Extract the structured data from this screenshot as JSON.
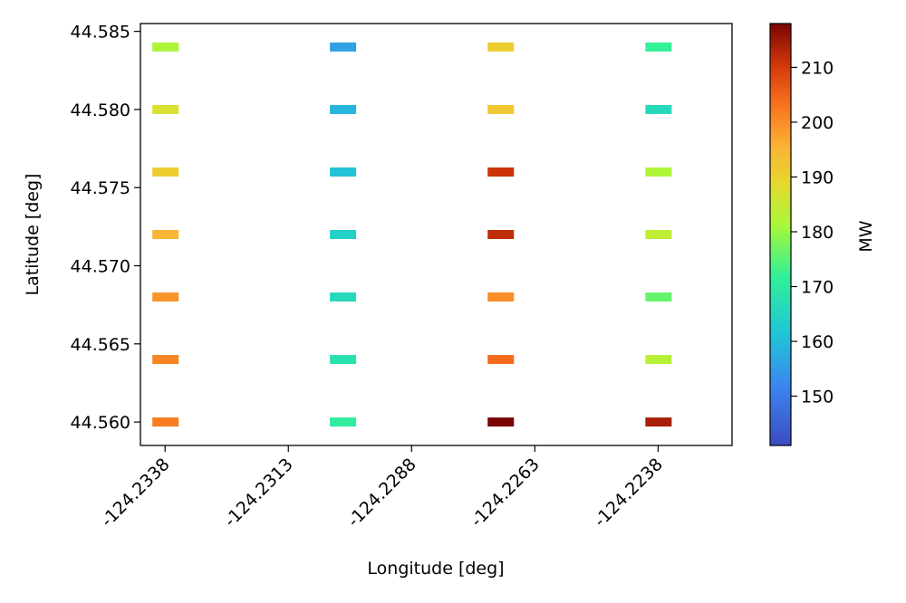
{
  "chart_data": {
    "type": "scatter",
    "title": "",
    "xlabel": "Longitude [deg]",
    "ylabel": "Latitude [deg]",
    "xlim": [
      -124.2343,
      -124.2223
    ],
    "ylim": [
      44.5585,
      44.5855
    ],
    "xticks": [
      -124.2338,
      -124.2313,
      -124.2288,
      -124.2263,
      -124.2238
    ],
    "xtick_labels": [
      "-124.2338",
      "-124.2313",
      "-124.2288",
      "-124.2263",
      "-124.2238"
    ],
    "yticks": [
      44.56,
      44.565,
      44.57,
      44.575,
      44.58,
      44.585
    ],
    "ytick_labels": [
      "44.560",
      "44.565",
      "44.570",
      "44.575",
      "44.580",
      "44.585"
    ],
    "marker": "horizontal bar",
    "colorbar": {
      "label": "MW",
      "vmin": 141,
      "vmax": 218,
      "ticks": [
        150,
        160,
        170,
        180,
        190,
        200,
        210
      ],
      "tick_labels": [
        "150",
        "160",
        "170",
        "180",
        "190",
        "200",
        "210"
      ],
      "colormap": "turbo"
    },
    "points": [
      {
        "lon": -124.2338,
        "lat": 44.584,
        "mw": 182
      },
      {
        "lon": -124.2338,
        "lat": 44.58,
        "mw": 187
      },
      {
        "lon": -124.2338,
        "lat": 44.576,
        "mw": 191
      },
      {
        "lon": -124.2338,
        "lat": 44.572,
        "mw": 195
      },
      {
        "lon": -124.2338,
        "lat": 44.568,
        "mw": 199
      },
      {
        "lon": -124.2338,
        "lat": 44.564,
        "mw": 201
      },
      {
        "lon": -124.2338,
        "lat": 44.56,
        "mw": 202
      },
      {
        "lon": -124.2302,
        "lat": 44.584,
        "mw": 156
      },
      {
        "lon": -124.2302,
        "lat": 44.58,
        "mw": 159
      },
      {
        "lon": -124.2302,
        "lat": 44.576,
        "mw": 161
      },
      {
        "lon": -124.2302,
        "lat": 44.572,
        "mw": 164
      },
      {
        "lon": -124.2302,
        "lat": 44.568,
        "mw": 166
      },
      {
        "lon": -124.2302,
        "lat": 44.564,
        "mw": 168
      },
      {
        "lon": -124.2302,
        "lat": 44.56,
        "mw": 171
      },
      {
        "lon": -124.227,
        "lat": 44.584,
        "mw": 191
      },
      {
        "lon": -124.227,
        "lat": 44.58,
        "mw": 192
      },
      {
        "lon": -124.227,
        "lat": 44.576,
        "mw": 211
      },
      {
        "lon": -124.227,
        "lat": 44.572,
        "mw": 212
      },
      {
        "lon": -124.227,
        "lat": 44.568,
        "mw": 200
      },
      {
        "lon": -124.227,
        "lat": 44.564,
        "mw": 204
      },
      {
        "lon": -124.227,
        "lat": 44.56,
        "mw": 218
      },
      {
        "lon": -124.2238,
        "lat": 44.584,
        "mw": 172
      },
      {
        "lon": -124.2238,
        "lat": 44.58,
        "mw": 166
      },
      {
        "lon": -124.2238,
        "lat": 44.576,
        "mw": 182
      },
      {
        "lon": -124.2238,
        "lat": 44.572,
        "mw": 184
      },
      {
        "lon": -124.2238,
        "lat": 44.568,
        "mw": 176
      },
      {
        "lon": -124.2238,
        "lat": 44.564,
        "mw": 183
      },
      {
        "lon": -124.2238,
        "lat": 44.56,
        "mw": 214
      }
    ]
  }
}
